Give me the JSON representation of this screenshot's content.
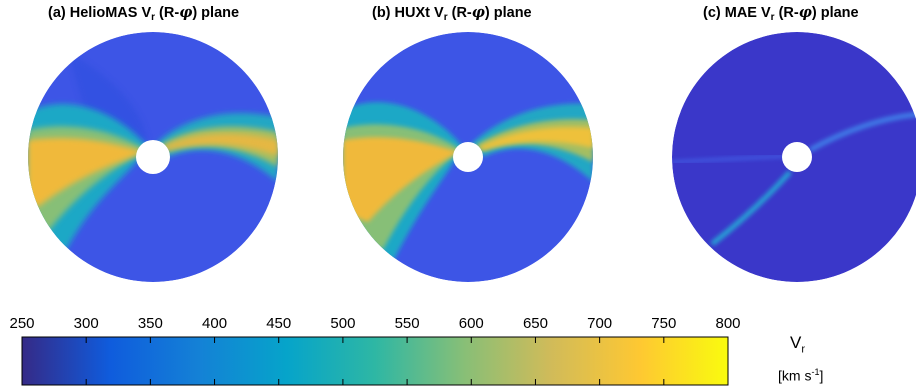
{
  "panels": [
    {
      "prefix": "(a) HelioMAS V",
      "sub": "r",
      "mid": " (R-",
      "phi": "φ",
      "suffix": ") plane",
      "field": "helio"
    },
    {
      "prefix": "(b) HUXt V",
      "sub": "r",
      "mid": " (R-",
      "phi": "φ",
      "suffix": ") plane",
      "field": "huxt"
    },
    {
      "prefix": "(c) MAE V",
      "sub": "r",
      "mid": " (R-",
      "phi": "φ",
      "suffix": ") plane",
      "field": "mae"
    }
  ],
  "colorbar": {
    "ticks": [
      "250",
      "300",
      "350",
      "400",
      "450",
      "500",
      "550",
      "600",
      "650",
      "700",
      "750",
      "800"
    ],
    "min": 250,
    "max": 800,
    "label_main": "V",
    "label_sub": "r",
    "unit_open": "[km s",
    "unit_sup": "-1",
    "unit_close": "]",
    "colormap": "parula",
    "stops": [
      "#352a87",
      "#0f5cdd",
      "#1481d6",
      "#06a4ca",
      "#2eb7a4",
      "#87bf77",
      "#d1bb59",
      "#fec832",
      "#f9fb0e"
    ]
  },
  "chart_data": [
    {
      "type": "heatmap",
      "title": "(a) HelioMAS Vr (R-φ) plane",
      "coordinates": "polar (R-φ)",
      "value_range": [
        250,
        800
      ],
      "description_values": {
        "background_Vr": 330,
        "fast_stream_peak_Vr": 690
      }
    },
    {
      "type": "heatmap",
      "title": "(b) HUXt Vr (R-φ) plane",
      "coordinates": "polar (R-φ)",
      "value_range": [
        250,
        800
      ],
      "description_values": {
        "background_Vr": 330,
        "fast_stream_peak_Vr": 700
      }
    },
    {
      "type": "heatmap",
      "title": "(c) MAE Vr (R-φ) plane",
      "coordinates": "polar (R-φ)",
      "value_range": [
        250,
        800
      ],
      "description_values": {
        "background_Vr": 290,
        "peak_Vr": 480
      }
    }
  ]
}
